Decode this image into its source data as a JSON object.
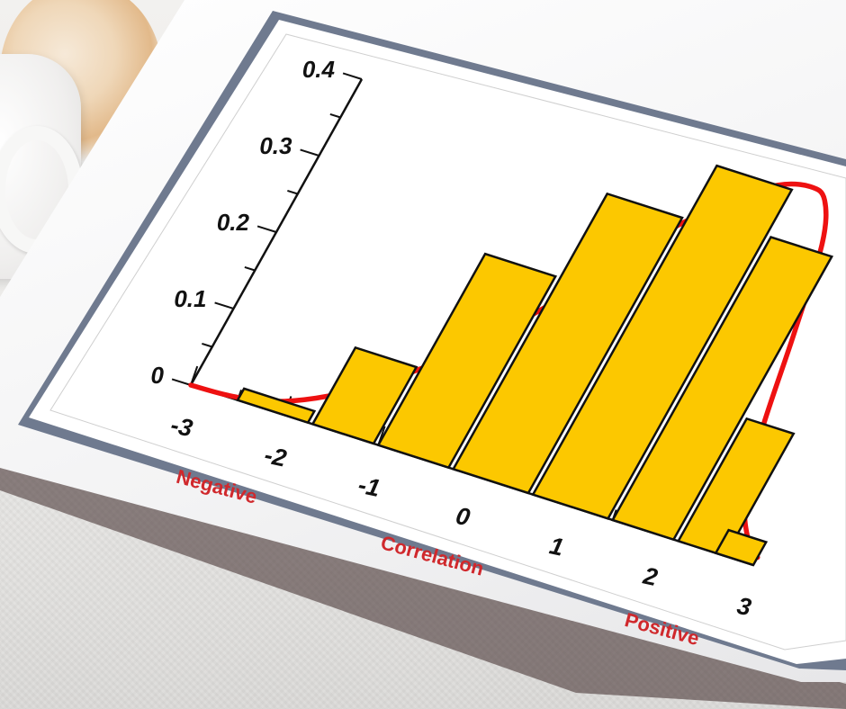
{
  "chart_data": {
    "type": "bar",
    "x_ticks": [
      "-3",
      "-2",
      "-1",
      "0",
      "1",
      "2",
      "3"
    ],
    "y_ticks": [
      "0",
      "0.1",
      "0.2",
      "0.3",
      "0.4"
    ],
    "ylim": [
      0,
      0.4
    ],
    "xlim": [
      -3,
      3
    ],
    "bars": [
      {
        "x0": -2.5,
        "x1": -1.75,
        "value": 0.015
      },
      {
        "x0": -1.7,
        "x1": -1.05,
        "value": 0.1
      },
      {
        "x0": -1.0,
        "x1": -0.25,
        "value": 0.25
      },
      {
        "x0": -0.2,
        "x1": 0.6,
        "value": 0.36
      },
      {
        "x0": 0.65,
        "x1": 1.45,
        "value": 0.43
      },
      {
        "x0": 1.5,
        "x1": 2.15,
        "value": 0.37
      },
      {
        "x0": 2.2,
        "x1": 2.7,
        "value": 0.16
      },
      {
        "x0": 2.6,
        "x1": 3.0,
        "value": 0.03
      }
    ],
    "curve": {
      "x": [
        -3.0,
        -2.6,
        -2.2,
        -1.8,
        -1.4,
        -1.0,
        -0.6,
        -0.2,
        0.2,
        0.6,
        1.0,
        1.3,
        1.6,
        1.8,
        2.0,
        2.2,
        2.4,
        2.6,
        2.8,
        3.0
      ],
      "y": [
        0.0,
        0.002,
        0.01,
        0.03,
        0.06,
        0.1,
        0.15,
        0.21,
        0.28,
        0.35,
        0.4,
        0.43,
        0.44,
        0.43,
        0.38,
        0.27,
        0.15,
        0.07,
        0.03,
        0.01
      ]
    },
    "annotations": [
      "Negative",
      "Correlation",
      "Positive"
    ],
    "colors": {
      "bar": "#fcc800",
      "bar_stroke": "#111111",
      "curve": "#ee1111",
      "annotation": "#d0282c"
    },
    "grid": false
  }
}
